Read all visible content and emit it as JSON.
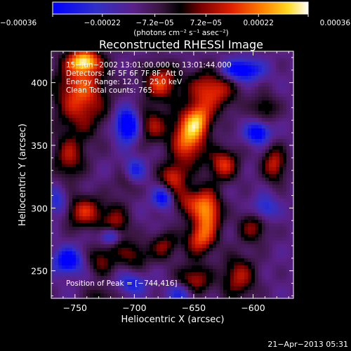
{
  "chart_data": {
    "type": "heatmap",
    "title": "Reconstructed RHESSI Image",
    "xlabel": "Heliocentric X (arcsec)",
    "ylabel": "Heliocentric Y (arcsec)",
    "xlim": [
      -770,
      -566
    ],
    "ylim": [
      228,
      425
    ],
    "xticks": [
      -750,
      -700,
      -650,
      -600
    ],
    "xtick_labels": [
      "−750",
      "−700",
      "−650",
      "−600"
    ],
    "yticks": [
      250,
      300,
      350,
      400
    ],
    "ytick_labels": [
      "250",
      "300",
      "350",
      "400"
    ],
    "colorbar": {
      "colormap": "hot-with-blue-negatives",
      "ticks": [
        -0.00036,
        -0.00022,
        -7.2e-05,
        7.2e-05,
        0.00022,
        0.00036
      ],
      "tick_labels": [
        "−0.00036",
        "−0.00022",
        "−7.2e−05",
        "7.2e−05",
        "0.00022",
        "0.00036"
      ],
      "range": [
        -0.00036,
        0.00036
      ],
      "unit_label": "(photons cm⁻² s⁻¹ asec⁻²)"
    },
    "info": {
      "time_range": "15−Jun−2002 13:01:00.000 to 13:01:44.000",
      "detectors": "Detectors: 4F 5F 6F 7F 8F, Att 0",
      "energy_range": "Energy Range: 12.0 − 25.0 keV",
      "clean_counts": "Clean     Total counts: 765.",
      "peak_position": "Position of Peak = [−744,416]"
    },
    "peak": [
      -744,
      416
    ],
    "blobs_positive": [
      {
        "x": -745,
        "y": 392,
        "value": 0.0003,
        "sx": 15,
        "sy": 22
      },
      {
        "x": -742,
        "y": 417,
        "value": 0.00033,
        "sx": 9,
        "sy": 6
      },
      {
        "x": -755,
        "y": 340,
        "value": 0.0002,
        "sx": 9,
        "sy": 12
      },
      {
        "x": -742,
        "y": 297,
        "value": 0.00025,
        "sx": 11,
        "sy": 9
      },
      {
        "x": -716,
        "y": 285,
        "value": 0.00022,
        "sx": 8,
        "sy": 12
      },
      {
        "x": -728,
        "y": 258,
        "value": 0.00017,
        "sx": 8,
        "sy": 8
      },
      {
        "x": -728,
        "y": 230,
        "value": 0.00012,
        "sx": 9,
        "sy": 6
      },
      {
        "x": -678,
        "y": 400,
        "value": 0.00028,
        "sx": 10,
        "sy": 10
      },
      {
        "x": -635,
        "y": 394,
        "value": 0.00028,
        "sx": 14,
        "sy": 12
      },
      {
        "x": -685,
        "y": 366,
        "value": 0.0002,
        "sx": 9,
        "sy": 10
      },
      {
        "x": -655,
        "y": 355,
        "value": 0.00034,
        "sx": 10,
        "sy": 14
      },
      {
        "x": -646,
        "y": 370,
        "value": 0.00026,
        "sx": 8,
        "sy": 9
      },
      {
        "x": -625,
        "y": 335,
        "value": 0.00026,
        "sx": 9,
        "sy": 9
      },
      {
        "x": -668,
        "y": 325,
        "value": 0.00024,
        "sx": 8,
        "sy": 8
      },
      {
        "x": -655,
        "y": 306,
        "value": 0.0002,
        "sx": 10,
        "sy": 9
      },
      {
        "x": -638,
        "y": 297,
        "value": 0.00034,
        "sx": 8,
        "sy": 12
      },
      {
        "x": -645,
        "y": 275,
        "value": 0.00026,
        "sx": 9,
        "sy": 9
      },
      {
        "x": -675,
        "y": 270,
        "value": 0.00018,
        "sx": 8,
        "sy": 8
      },
      {
        "x": -700,
        "y": 262,
        "value": 0.00016,
        "sx": 9,
        "sy": 8
      },
      {
        "x": -650,
        "y": 242,
        "value": 0.00023,
        "sx": 10,
        "sy": 9
      },
      {
        "x": -612,
        "y": 245,
        "value": 0.00022,
        "sx": 10,
        "sy": 12
      },
      {
        "x": -600,
        "y": 285,
        "value": 0.00018,
        "sx": 9,
        "sy": 9
      },
      {
        "x": -582,
        "y": 335,
        "value": 0.00024,
        "sx": 7,
        "sy": 10
      },
      {
        "x": -590,
        "y": 380,
        "value": 0.00014,
        "sx": 8,
        "sy": 8
      },
      {
        "x": -707,
        "y": 320,
        "value": 0.0001,
        "sx": 7,
        "sy": 7
      }
    ],
    "blobs_negative": [
      {
        "x": -706,
        "y": 366,
        "value": -0.00036,
        "sx": 7,
        "sy": 9
      },
      {
        "x": -720,
        "y": 278,
        "value": -0.0003,
        "sx": 6,
        "sy": 5
      },
      {
        "x": -676,
        "y": 308,
        "value": -0.00026,
        "sx": 6,
        "sy": 6
      },
      {
        "x": -700,
        "y": 330,
        "value": -0.00018,
        "sx": 6,
        "sy": 7
      },
      {
        "x": -756,
        "y": 258,
        "value": -0.0003,
        "sx": 8,
        "sy": 7
      },
      {
        "x": -596,
        "y": 360,
        "value": -0.0003,
        "sx": 7,
        "sy": 6
      },
      {
        "x": -590,
        "y": 300,
        "value": -0.00018,
        "sx": 7,
        "sy": 7
      },
      {
        "x": -610,
        "y": 410,
        "value": -0.00032,
        "sx": 12,
        "sy": 6
      },
      {
        "x": -660,
        "y": 232,
        "value": -0.0002,
        "sx": 8,
        "sy": 6
      },
      {
        "x": -702,
        "y": 240,
        "value": -0.00018,
        "sx": 8,
        "sy": 6
      },
      {
        "x": -765,
        "y": 305,
        "value": -0.00016,
        "sx": 6,
        "sy": 8
      }
    ]
  },
  "footer": {
    "timestamp": "21−Apr−2013 05:31"
  }
}
